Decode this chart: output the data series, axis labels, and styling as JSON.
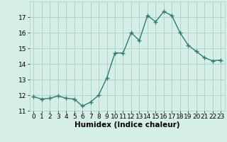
{
  "x": [
    0,
    1,
    2,
    3,
    4,
    5,
    6,
    7,
    8,
    9,
    10,
    11,
    12,
    13,
    14,
    15,
    16,
    17,
    18,
    19,
    20,
    21,
    22,
    23
  ],
  "y": [
    11.9,
    11.75,
    11.8,
    11.95,
    11.8,
    11.75,
    11.3,
    11.55,
    12.0,
    13.1,
    14.7,
    14.7,
    16.0,
    15.5,
    17.1,
    16.7,
    17.35,
    17.1,
    16.0,
    15.2,
    14.8,
    14.4,
    14.2,
    14.25
  ],
  "line_color": "#2e7d6e",
  "marker": "+",
  "marker_size": 4,
  "marker_linewidth": 1.0,
  "bg_color": "#d6eee8",
  "grid_color": "#a8cfc7",
  "xlabel": "Humidex (Indice chaleur)",
  "xlabel_fontsize": 7.5,
  "ylim": [
    11,
    18
  ],
  "xlim": [
    -0.5,
    23.5
  ],
  "yticks": [
    11,
    12,
    13,
    14,
    15,
    16,
    17
  ],
  "xticks": [
    0,
    1,
    2,
    3,
    4,
    5,
    6,
    7,
    8,
    9,
    10,
    11,
    12,
    13,
    14,
    15,
    16,
    17,
    18,
    19,
    20,
    21,
    22,
    23
  ],
  "tick_fontsize": 6.5,
  "linewidth": 1.0
}
